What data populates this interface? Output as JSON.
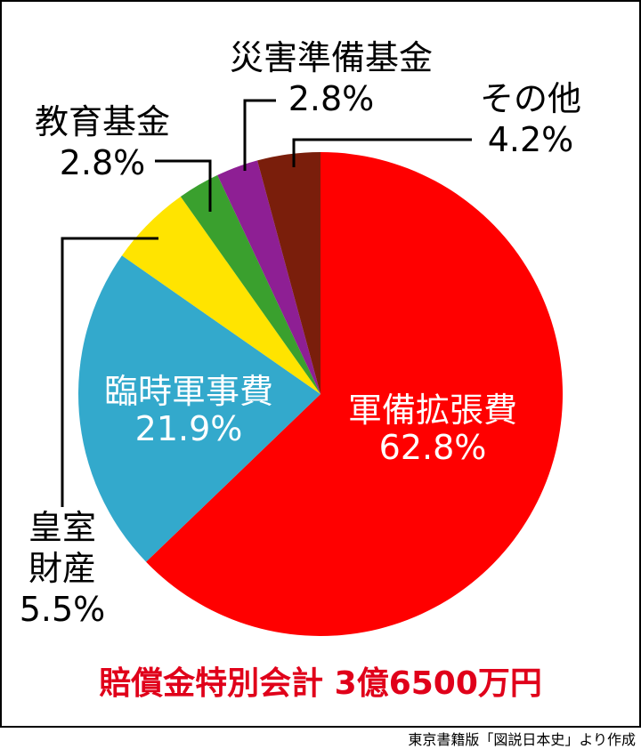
{
  "chart_data": {
    "type": "pie",
    "slices": [
      {
        "label": "軍備拡張費",
        "value": 62.8,
        "value_label": "62.8%",
        "color": "#ff0000"
      },
      {
        "label": "臨時軍事費",
        "value": 21.9,
        "value_label": "21.9%",
        "color": "#33a9cc"
      },
      {
        "label_lines": [
          "皇室",
          "財産"
        ],
        "value": 5.5,
        "value_label": "5.5%",
        "color": "#ffe400"
      },
      {
        "label": "教育基金",
        "value": 2.8,
        "value_label": "2.8%",
        "color": "#3aa02e"
      },
      {
        "label": "災害準備基金",
        "value": 2.8,
        "value_label": "2.8%",
        "color": "#8e1f94"
      },
      {
        "label": "その他",
        "value": 4.2,
        "value_label": "4.2%",
        "color": "#7a1e0b"
      }
    ],
    "footer": "賠償金特別会計 3億6500万円"
  },
  "source": "東京書籍版「図説日本史」より作成"
}
